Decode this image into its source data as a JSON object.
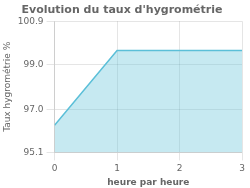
{
  "chart_data": {
    "type": "area",
    "title": "Evolution du taux d'hygrométrie",
    "xlabel": "heure par heure",
    "ylabel": "Taux hygrométrie %",
    "x": [
      0,
      1,
      2,
      3
    ],
    "values": [
      96.3,
      99.6,
      99.6,
      99.6
    ],
    "xlim": [
      0,
      3
    ],
    "ylim": [
      95.1,
      100.9
    ],
    "xticks": [
      0,
      1,
      2,
      3
    ],
    "yticks": [
      95.1,
      {
        "value": 97.0,
        "label": "97.0"
      },
      {
        "value": 99.0,
        "label": "99.0"
      },
      100.9
    ],
    "color": "#5bbfd8",
    "grid": true
  }
}
